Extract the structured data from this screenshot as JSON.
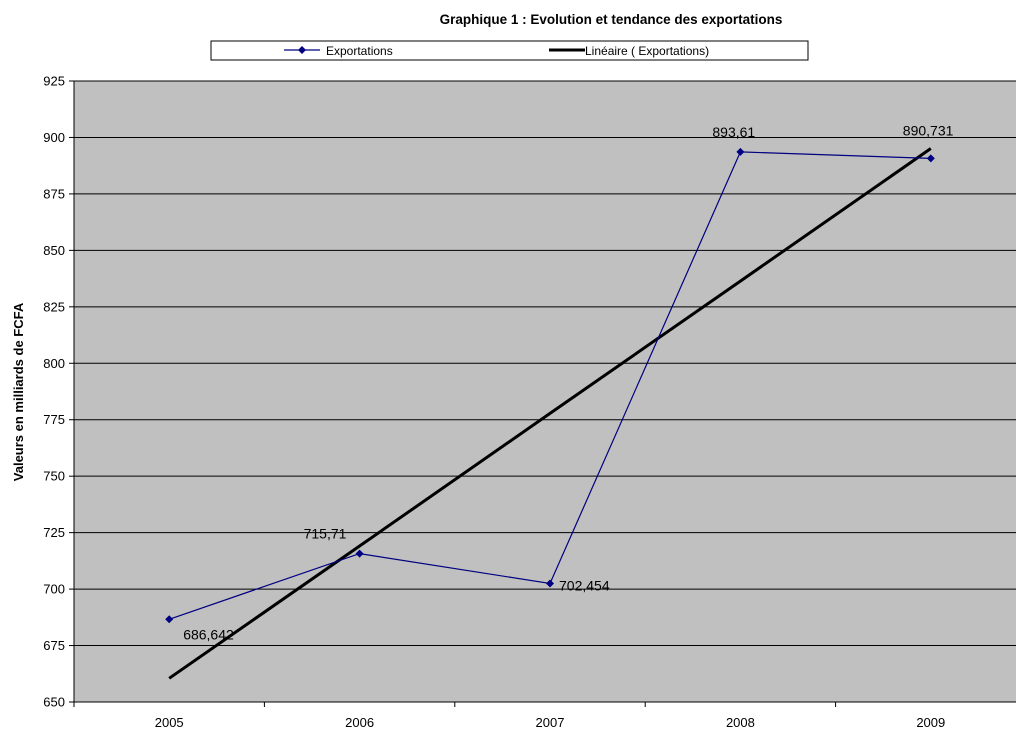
{
  "chart_data": {
    "type": "line",
    "title": "Graphique 1 : Evolution et tendance des exportations",
    "xlabel": "",
    "ylabel": "Valeurs en milliards de FCFA",
    "categories": [
      "2005",
      "2006",
      "2007",
      "2008",
      "2009"
    ],
    "ylim": [
      650,
      925
    ],
    "ytick_step": 25,
    "yticks": [
      "650",
      "675",
      "700",
      "725",
      "750",
      "775",
      "800",
      "825",
      "850",
      "875",
      "900",
      "925"
    ],
    "grid": "horizontal",
    "legend_placement": "top",
    "plot_background": "#c0c0c0",
    "series": [
      {
        "name": "Exportations",
        "color": "#000080",
        "marker": "diamond",
        "values": [
          686.642,
          715.71,
          702.454,
          893.61,
          890.731
        ],
        "data_labels": [
          "686,642",
          "715,71",
          "702,454",
          "893,61",
          "890,731"
        ]
      },
      {
        "name": "Linéaire ( Exportations)",
        "color": "#000000",
        "marker": "none",
        "trendline": "linear",
        "values": [
          660.5,
          719.1,
          777.8,
          836.4,
          895.1
        ]
      }
    ]
  }
}
